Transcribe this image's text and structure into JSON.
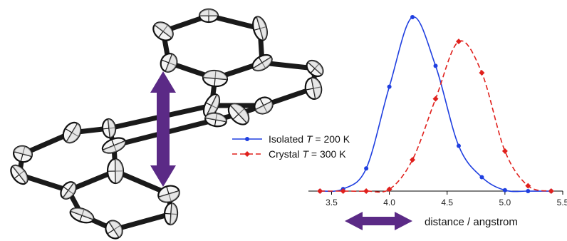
{
  "molecule": {
    "icon": "crystal-structure-ortep-icon",
    "arrow_icon": "double-headed-arrow-icon",
    "color": "#5b2a86"
  },
  "chart_data": {
    "type": "line",
    "xlabel": "distance / angstrom",
    "ylabel": "",
    "xlim": [
      3.3,
      5.5
    ],
    "x_ticks": [
      "3.5",
      "4.0",
      "4.5",
      "5.0",
      "5.5"
    ],
    "legend_placement": "left-middle",
    "grid": false,
    "series": [
      {
        "name_prefix": "Isolated ",
        "name_var": "T",
        "name_suffix": " = 200 K",
        "color": "#1f3fe0",
        "style": "solid",
        "marker": "circle",
        "points": [
          [
            3.4,
            0.0
          ],
          [
            3.6,
            0.012
          ],
          [
            3.8,
            0.13
          ],
          [
            4.0,
            0.6
          ],
          [
            4.2,
            1.0
          ],
          [
            4.4,
            0.72
          ],
          [
            4.6,
            0.26
          ],
          [
            4.8,
            0.08
          ],
          [
            5.0,
            0.005
          ],
          [
            5.2,
            0.0
          ],
          [
            5.4,
            0.0
          ]
        ]
      },
      {
        "name_prefix": "Crystal ",
        "name_var": "T",
        "name_suffix": " = 300 K",
        "color": "#e0201c",
        "style": "dashed",
        "marker": "diamond",
        "points": [
          [
            3.4,
            0.0
          ],
          [
            3.6,
            0.0
          ],
          [
            3.8,
            0.0
          ],
          [
            4.0,
            0.01
          ],
          [
            4.2,
            0.18
          ],
          [
            4.4,
            0.53
          ],
          [
            4.6,
            0.86
          ],
          [
            4.8,
            0.68
          ],
          [
            5.0,
            0.23
          ],
          [
            5.2,
            0.03
          ],
          [
            5.4,
            0.0
          ]
        ]
      }
    ]
  }
}
